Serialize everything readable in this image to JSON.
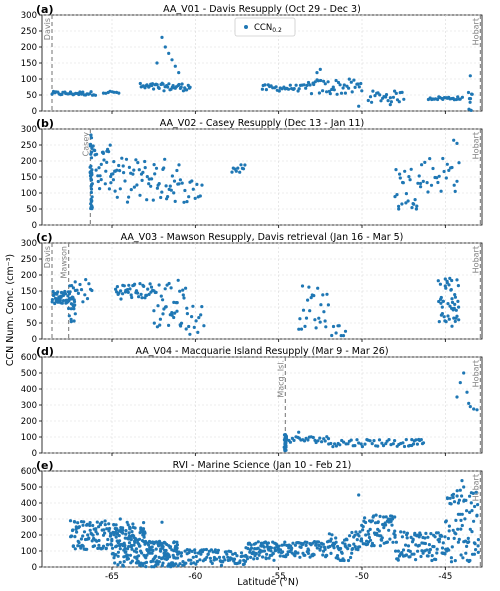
{
  "figure": {
    "ylabel": "CCN Num. Conc. (cm⁻³)",
    "xlabel": "Latitude (°N)",
    "legend_label": "CCN",
    "legend_sub": "0.2",
    "marker_color": "#1f77b4"
  },
  "chart_data": [
    {
      "type": "scatter",
      "panel": "(a)",
      "title": "AA_V01 - Davis Resupply (Oct 29 - Dec 3)",
      "xlim": [
        -69.2,
        -42.8
      ],
      "ylim": [
        0,
        300
      ],
      "yticks": [
        0,
        50,
        100,
        150,
        200,
        250,
        300
      ],
      "grid": true,
      "legend": "top-center",
      "stations": [
        {
          "name": "Davis",
          "lat": -68.6
        },
        {
          "name": "Hobart",
          "lat": -42.9
        }
      ],
      "segments": [
        {
          "x0": -68.6,
          "x1": -66.0,
          "base": 55,
          "amp": 6,
          "n": 32
        },
        {
          "x0": -65.5,
          "x1": -64.6,
          "base": 58,
          "amp": 5,
          "n": 8
        },
        {
          "x0": -63.3,
          "x1": -60.3,
          "base": 75,
          "amp": 12,
          "n": 45
        },
        {
          "x0": -56.0,
          "x1": -53.3,
          "base": 72,
          "amp": 10,
          "n": 30
        },
        {
          "x0": -53.2,
          "x1": -50.0,
          "base": 75,
          "amp": 25,
          "n": 40
        },
        {
          "x0": -49.6,
          "x1": -47.5,
          "base": 45,
          "amp": 18,
          "n": 24
        },
        {
          "x0": -46.0,
          "x1": -44.0,
          "base": 40,
          "amp": 5,
          "n": 24
        },
        {
          "x0": -43.6,
          "x1": -43.4,
          "base": 30,
          "amp": 30,
          "n": 8
        }
      ],
      "extra_points": [
        {
          "x": -62.0,
          "y": 230
        },
        {
          "x": -61.8,
          "y": 200
        },
        {
          "x": -61.6,
          "y": 180
        },
        {
          "x": -61.4,
          "y": 160
        },
        {
          "x": -61.2,
          "y": 140
        },
        {
          "x": -61.0,
          "y": 120
        },
        {
          "x": -62.3,
          "y": 150
        },
        {
          "x": -52.5,
          "y": 130
        },
        {
          "x": -52.7,
          "y": 120
        },
        {
          "x": -48.3,
          "y": 20
        },
        {
          "x": -50.2,
          "y": 15
        },
        {
          "x": -43.5,
          "y": 110
        }
      ]
    },
    {
      "type": "scatter",
      "panel": "(b)",
      "title": "AA_V02 - Casey Resupply (Dec 13 - Jan 11)",
      "xlim": [
        -69.2,
        -42.8
      ],
      "ylim": [
        0,
        300
      ],
      "yticks": [
        0,
        50,
        100,
        150,
        200,
        250,
        300
      ],
      "grid": true,
      "stations": [
        {
          "name": "Casey",
          "lat": -66.3
        },
        {
          "name": "Hobart",
          "lat": -42.9
        }
      ],
      "segments": [
        {
          "x0": -66.3,
          "x1": -66.2,
          "base": 170,
          "amp": 120,
          "n": 40
        },
        {
          "x0": -66.2,
          "x1": -64.8,
          "base": 180,
          "amp": 70,
          "n": 35
        },
        {
          "x0": -64.8,
          "x1": -61.0,
          "base": 140,
          "amp": 70,
          "n": 60
        },
        {
          "x0": -61.0,
          "x1": -59.6,
          "base": 110,
          "amp": 40,
          "n": 15
        },
        {
          "x0": -57.8,
          "x1": -57.0,
          "base": 175,
          "amp": 15,
          "n": 10
        },
        {
          "x0": -48.0,
          "x1": -46.5,
          "base": 120,
          "amp": 70,
          "n": 25
        },
        {
          "x0": -46.5,
          "x1": -44.2,
          "base": 160,
          "amp": 60,
          "n": 25
        }
      ],
      "extra_points": [
        {
          "x": -44.5,
          "y": 265
        },
        {
          "x": -44.3,
          "y": 255
        },
        {
          "x": -47.8,
          "y": 50
        }
      ]
    },
    {
      "type": "scatter",
      "panel": "(c)",
      "title": "AA_V03 - Mawson Resupply, Davis retrieval (Jan 16 - Mar 5)",
      "xlim": [
        -69.2,
        -42.8
      ],
      "ylim": [
        0,
        300
      ],
      "yticks": [
        0,
        50,
        100,
        150,
        200,
        250,
        300
      ],
      "grid": true,
      "stations": [
        {
          "name": "Davis",
          "lat": -68.6
        },
        {
          "name": "Mawson",
          "lat": -67.6
        },
        {
          "name": "Hobart",
          "lat": -42.9
        }
      ],
      "segments": [
        {
          "x0": -68.6,
          "x1": -67.6,
          "base": 130,
          "amp": 20,
          "n": 40
        },
        {
          "x0": -67.6,
          "x1": -67.2,
          "base": 110,
          "amp": 60,
          "n": 30
        },
        {
          "x0": -67.2,
          "x1": -66.2,
          "base": 150,
          "amp": 40,
          "n": 12
        },
        {
          "x0": -64.8,
          "x1": -62.5,
          "base": 150,
          "amp": 25,
          "n": 40
        },
        {
          "x0": -62.5,
          "x1": -60.5,
          "base": 110,
          "amp": 80,
          "n": 40
        },
        {
          "x0": -60.5,
          "x1": -59.5,
          "base": 60,
          "amp": 50,
          "n": 12
        },
        {
          "x0": -53.8,
          "x1": -52.0,
          "base": 100,
          "amp": 70,
          "n": 25
        },
        {
          "x0": -51.8,
          "x1": -51.0,
          "base": 30,
          "amp": 20,
          "n": 8
        },
        {
          "x0": -45.4,
          "x1": -44.2,
          "base": 120,
          "amp": 70,
          "n": 45
        }
      ],
      "extra_points": [
        {
          "x": -44.6,
          "y": 40
        },
        {
          "x": -44.4,
          "y": 55
        },
        {
          "x": -44.2,
          "y": 60
        }
      ]
    },
    {
      "type": "scatter",
      "panel": "(d)",
      "title": "AA_V04 - Macquarie Island Resupply (Mar 9 - Mar 26)",
      "xlim": [
        -69.2,
        -42.8
      ],
      "ylim": [
        0,
        600
      ],
      "yticks": [
        0,
        100,
        200,
        300,
        400,
        500,
        600
      ],
      "grid": true,
      "stations": [
        {
          "name": "Macq. Isl.",
          "lat": -54.6
        },
        {
          "name": "Hobart",
          "lat": -42.9
        }
      ],
      "segments": [
        {
          "x0": -54.65,
          "x1": -54.55,
          "base": 70,
          "amp": 55,
          "n": 45
        },
        {
          "x0": -54.5,
          "x1": -52.0,
          "base": 85,
          "amp": 20,
          "n": 25
        },
        {
          "x0": -52.0,
          "x1": -47.0,
          "base": 65,
          "amp": 25,
          "n": 45
        },
        {
          "x0": -47.0,
          "x1": -46.3,
          "base": 70,
          "amp": 15,
          "n": 10
        }
      ],
      "extra_points": [
        {
          "x": -53.8,
          "y": 130
        },
        {
          "x": -44.3,
          "y": 350
        },
        {
          "x": -44.1,
          "y": 440
        },
        {
          "x": -43.9,
          "y": 500
        },
        {
          "x": -43.7,
          "y": 380
        },
        {
          "x": -43.6,
          "y": 310
        },
        {
          "x": -43.5,
          "y": 290
        },
        {
          "x": -43.3,
          "y": 275
        },
        {
          "x": -43.1,
          "y": 270
        }
      ]
    },
    {
      "type": "scatter",
      "panel": "(e)",
      "title": "RVI - Marine Science (Jan 10 - Feb 21)",
      "xlim": [
        -69.2,
        -42.8
      ],
      "ylim": [
        0,
        600
      ],
      "yticks": [
        0,
        100,
        200,
        300,
        400,
        500,
        600
      ],
      "grid": true,
      "stations": [
        {
          "name": "Hobart",
          "lat": -42.9
        }
      ],
      "segments": [
        {
          "x0": -67.5,
          "x1": -65.0,
          "base": 200,
          "amp": 90,
          "n": 90
        },
        {
          "x0": -65.0,
          "x1": -63.0,
          "base": 140,
          "amp": 140,
          "n": 150
        },
        {
          "x0": -63.0,
          "x1": -61.0,
          "base": 80,
          "amp": 80,
          "n": 120
        },
        {
          "x0": -61.0,
          "x1": -57.0,
          "base": 60,
          "amp": 50,
          "n": 90
        },
        {
          "x0": -57.0,
          "x1": -55.0,
          "base": 100,
          "amp": 60,
          "n": 70
        },
        {
          "x0": -55.0,
          "x1": -52.0,
          "base": 110,
          "amp": 50,
          "n": 80
        },
        {
          "x0": -52.0,
          "x1": -50.0,
          "base": 130,
          "amp": 90,
          "n": 60
        },
        {
          "x0": -50.0,
          "x1": -48.0,
          "base": 230,
          "amp": 100,
          "n": 70
        },
        {
          "x0": -48.0,
          "x1": -45.0,
          "base": 130,
          "amp": 90,
          "n": 90
        },
        {
          "x0": -45.0,
          "x1": -43.0,
          "base": 250,
          "amp": 230,
          "n": 80
        }
      ],
      "extra_points": [
        {
          "x": -50.2,
          "y": 450
        },
        {
          "x": -44.0,
          "y": 540
        },
        {
          "x": -43.9,
          "y": 500
        },
        {
          "x": -44.1,
          "y": 480
        },
        {
          "x": -62.0,
          "y": 280
        },
        {
          "x": -64.5,
          "y": 300
        }
      ]
    }
  ]
}
